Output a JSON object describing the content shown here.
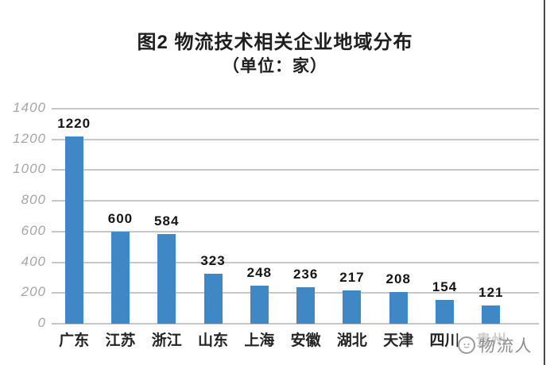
{
  "title": "图2 物流技术相关企业地域分布",
  "subtitle": "（单位：家）",
  "watermark": {
    "logo": "logistics-person-logo",
    "text": "物流人"
  },
  "colors": {
    "bar": "#3f87c5",
    "grid": "#c7c7c7",
    "ytick_text": "#a6a6a6",
    "label_text": "#1e1e1e",
    "watermark_text": "#8d8d8d"
  },
  "chart_data": {
    "type": "bar",
    "title": "图2 物流技术相关企业地域分布",
    "subtitle": "（单位：家）",
    "categories": [
      "广东",
      "江苏",
      "浙江",
      "山东",
      "上海",
      "安徽",
      "湖北",
      "天津",
      "四川",
      "贵州"
    ],
    "values": [
      1220,
      600,
      584,
      323,
      248,
      236,
      217,
      208,
      154,
      121
    ],
    "unit": "家",
    "xlabel": "",
    "ylabel": "",
    "ylim": [
      0,
      1400
    ],
    "yticks": [
      0,
      200,
      400,
      600,
      800,
      1000,
      1200,
      1400
    ],
    "grid": "horizontal",
    "legend_position": "none",
    "data_labels": true,
    "bar_color": "#3f87c5",
    "notes": "last category label partially covered by watermark"
  }
}
